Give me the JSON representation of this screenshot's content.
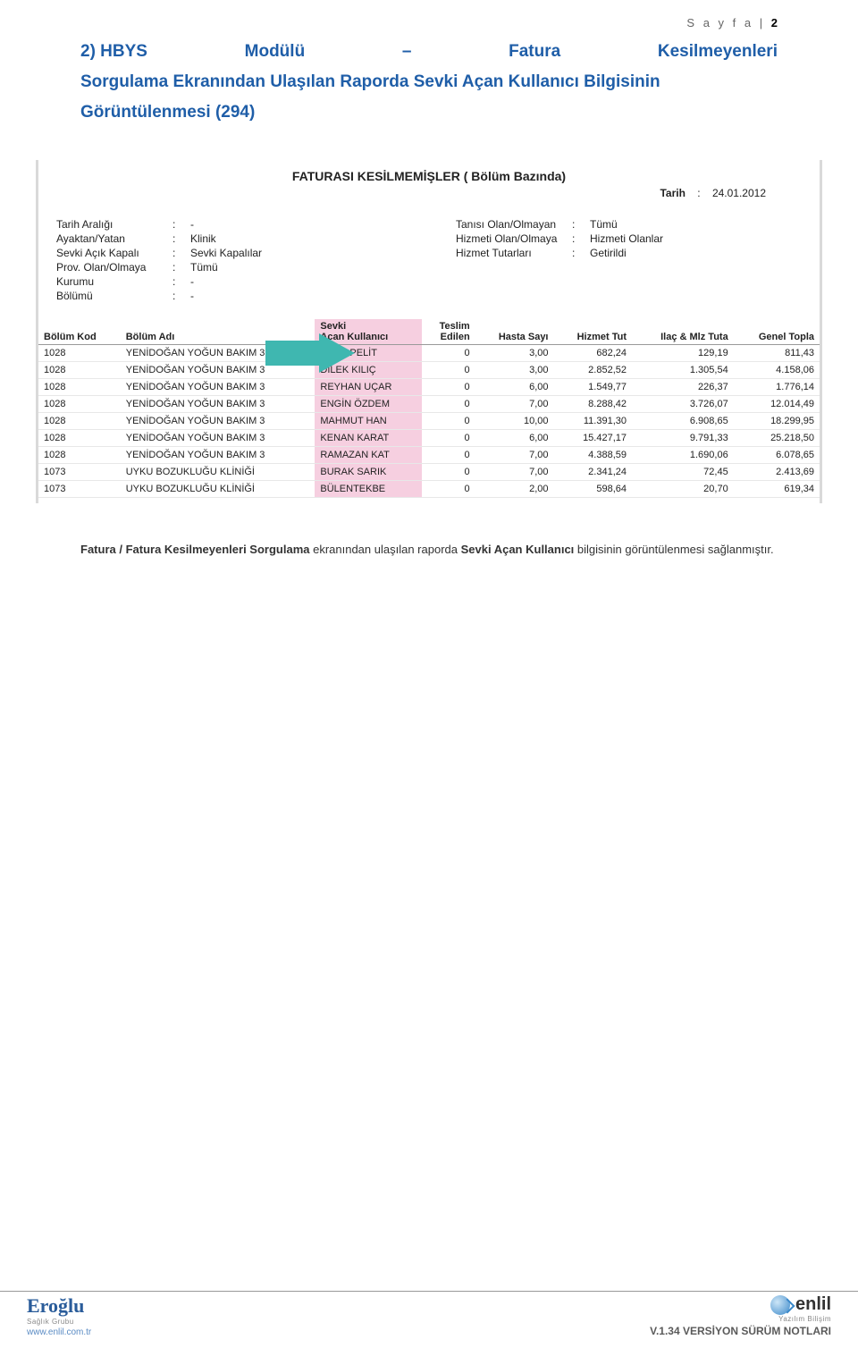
{
  "header": {
    "page_label": "S a y f a",
    "page_sep": "|",
    "page_num": "2"
  },
  "title": {
    "line1_prefix": "2) HBYS",
    "line1_mid": "Modülü",
    "line1_dash": "–",
    "line1_mid2": "Fatura",
    "line1_end": "Kesilmeyenleri",
    "line2": "Sorgulama Ekranından Ulaşılan Raporda Sevki Açan Kullanıcı Bilgisinin Görüntülenmesi (294)"
  },
  "report": {
    "title": "FATURASI KESİLMEMİŞLER     ( Bölüm Bazında)",
    "date_label": "Tarih",
    "date_sep": ":",
    "date_value": "24.01.2012",
    "filters_left": [
      {
        "k": "Tarih Aralığı",
        "v": "-"
      },
      {
        "k": "Ayaktan/Yatan",
        "v": "Klinik"
      },
      {
        "k": "Sevki Açık Kapalı",
        "v": "Sevki Kapalılar"
      },
      {
        "k": "Prov. Olan/Olmaya",
        "v": "Tümü"
      },
      {
        "k": "Kurumu",
        "v": "-"
      },
      {
        "k": "Bölümü",
        "v": "-"
      }
    ],
    "filters_right": [
      {
        "k": "Tanısı Olan/Olmayan",
        "v": "Tümü"
      },
      {
        "k": "Hizmeti Olan/Olmaya",
        "v": "Hizmeti Olanlar"
      },
      {
        "k": "Hizmet Tutarları",
        "v": "Getirildi"
      }
    ],
    "columns": [
      "Bölüm Kod",
      "Bölüm Adı",
      "Sevki Açan Kullanıcı",
      "Teslim Edilen",
      "Hasta Sayı",
      "Hizmet Tut",
      "Ilaç & Mlz Tuta",
      "Genel Topla"
    ],
    "rows": [
      [
        "1028",
        "YENİDOĞAN YOĞUN BAKIM 3",
        "ARZU PELİT",
        "0",
        "3,00",
        "682,24",
        "129,19",
        "811,43"
      ],
      [
        "1028",
        "YENİDOĞAN YOĞUN BAKIM 3",
        "DİLEK KILIÇ",
        "0",
        "3,00",
        "2.852,52",
        "1.305,54",
        "4.158,06"
      ],
      [
        "1028",
        "YENİDOĞAN YOĞUN BAKIM 3",
        "REYHAN UÇAR",
        "0",
        "6,00",
        "1.549,77",
        "226,37",
        "1.776,14"
      ],
      [
        "1028",
        "YENİDOĞAN YOĞUN BAKIM 3",
        "ENGİN ÖZDEM",
        "0",
        "7,00",
        "8.288,42",
        "3.726,07",
        "12.014,49"
      ],
      [
        "1028",
        "YENİDOĞAN YOĞUN BAKIM 3",
        "MAHMUT HAN",
        "0",
        "10,00",
        "11.391,30",
        "6.908,65",
        "18.299,95"
      ],
      [
        "1028",
        "YENİDOĞAN YOĞUN BAKIM 3",
        "KENAN KARAT",
        "0",
        "6,00",
        "15.427,17",
        "9.791,33",
        "25.218,50"
      ],
      [
        "1028",
        "YENİDOĞAN YOĞUN BAKIM 3",
        "RAMAZAN KAT",
        "0",
        "7,00",
        "4.388,59",
        "1.690,06",
        "6.078,65"
      ],
      [
        "1073",
        "UYKU BOZUKLUĞU KLİNİĞİ",
        "BURAK SARIK",
        "0",
        "7,00",
        "2.341,24",
        "72,45",
        "2.413,69"
      ],
      [
        "1073",
        "UYKU BOZUKLUĞU KLİNİĞİ",
        "BÜLENTEKBE",
        "0",
        "2,00",
        "598,64",
        "20,70",
        "619,34"
      ]
    ],
    "highlight_col": 2,
    "arrow_color": "#3fb7b0"
  },
  "caption": {
    "t1": "Fatura / Fatura Kesilmeyenleri Sorgulama",
    "t2": " ekranından ulaşılan raporda ",
    "t3": "Sevki Açan Kullanıcı",
    "t4": " bilgisinin görüntülenmesi sağlanmıştır."
  },
  "footer": {
    "brand_left": "Eroğlu",
    "brand_left_tag": "Sağlık Grubu",
    "url": "www.enlil.com.tr",
    "brand_right": "enlil",
    "brand_right_tag": "Yazılım Bilişim",
    "version": "V.1.34 VERSİYON SÜRÜM NOTLARI"
  }
}
